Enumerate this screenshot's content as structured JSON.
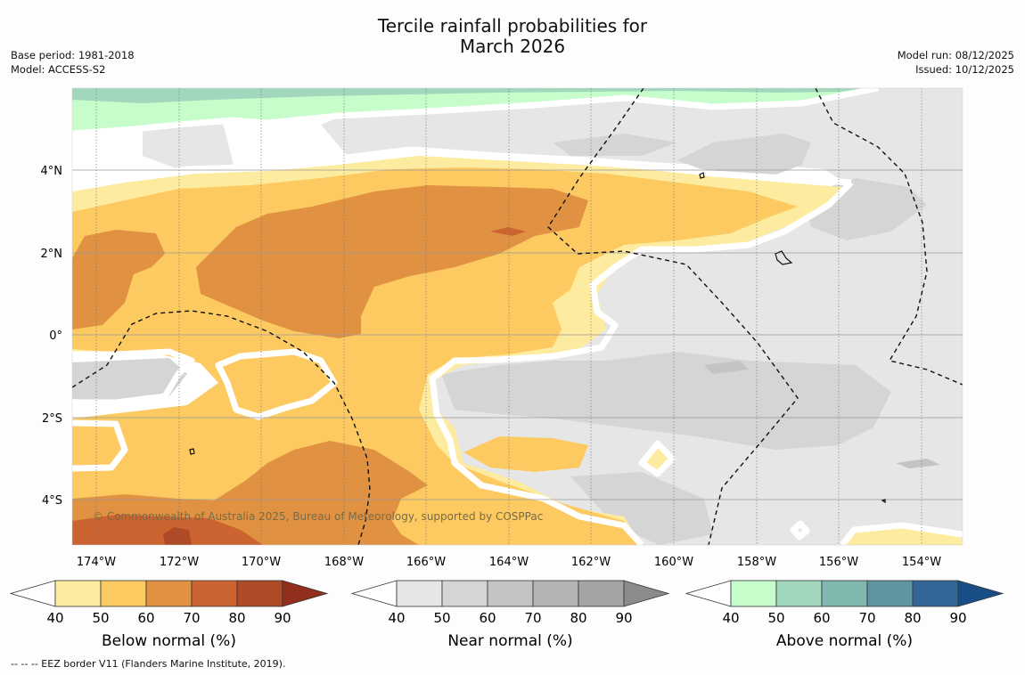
{
  "title": {
    "line1": "Tercile rainfall probabilities for",
    "line2": "March 2026"
  },
  "info": {
    "base_period": "Base period: 1981-2018",
    "model": "Model: ACCESS-S2",
    "model_run": "Model run: 08/12/2025",
    "issued": "Issued: 10/12/2025"
  },
  "map": {
    "lat_labels": [
      "4°N",
      "2°N",
      "0°",
      "2°S",
      "4°S"
    ],
    "lon_labels": [
      "174°W",
      "172°W",
      "170°W",
      "168°W",
      "166°W",
      "164°W",
      "162°W",
      "160°W",
      "158°W",
      "156°W",
      "154°W"
    ],
    "copyright": "© Commonwealth of Australia 2025, Bureau of Meteorology, supported by COSPPac"
  },
  "legends": [
    {
      "label": "Below normal (%)",
      "ticks": [
        "40",
        "50",
        "60",
        "70",
        "80",
        "90"
      ],
      "colors": [
        "#fdeca0",
        "#fdca62",
        "#e09242",
        "#cb6430",
        "#ae4a26",
        "#922e1c"
      ]
    },
    {
      "label": "Near normal (%)",
      "ticks": [
        "40",
        "50",
        "60",
        "70",
        "80",
        "90"
      ],
      "colors": [
        "#e6e6e6",
        "#d5d5d5",
        "#c4c4c4",
        "#b4b4b4",
        "#a4a4a4",
        "#8b8b8b"
      ]
    },
    {
      "label": "Above normal (%)",
      "ticks": [
        "40",
        "50",
        "60",
        "70",
        "80",
        "90"
      ],
      "colors": [
        "#c6fdcb",
        "#a1d8bd",
        "#80b8b0",
        "#5f94a1",
        "#336696",
        "#194d85"
      ]
    }
  ],
  "footer": "-- -- -- EEZ border V11 (Flanders Marine Institute, 2019)."
}
